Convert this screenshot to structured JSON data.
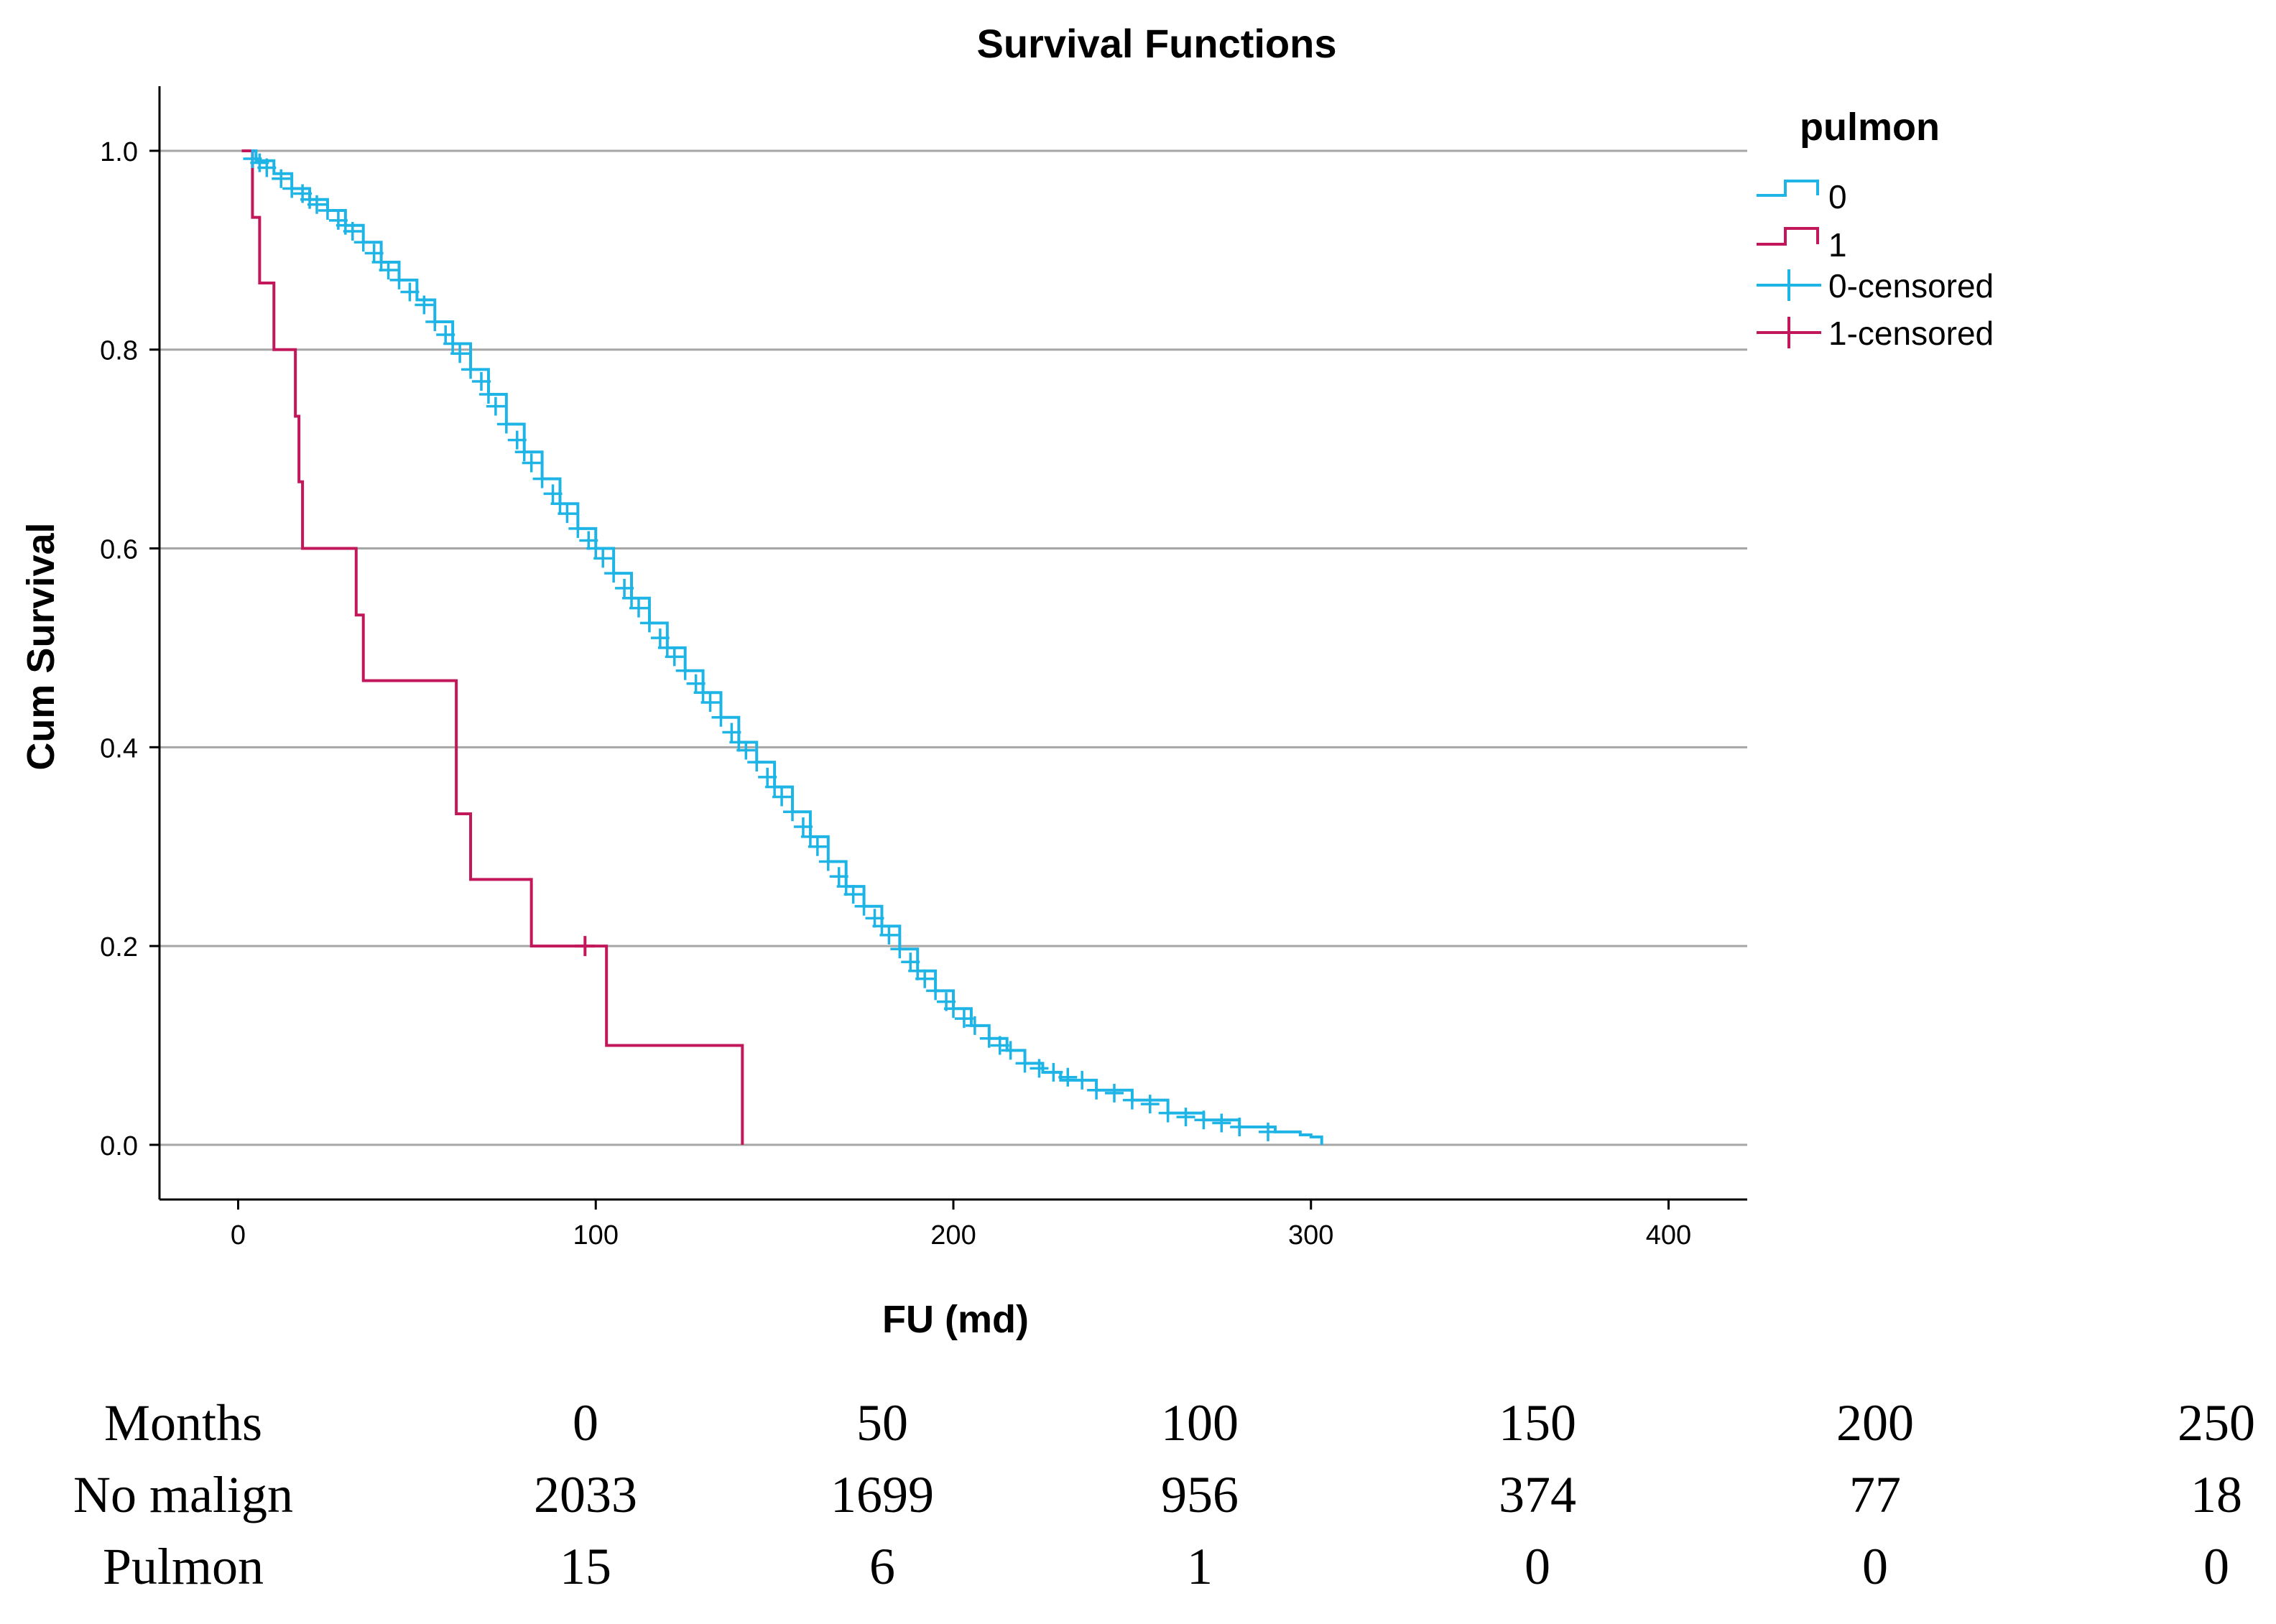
{
  "chart_data": {
    "type": "line",
    "subtype": "kaplan-meier step",
    "title": "Survival Functions",
    "xlabel": "FU (md)",
    "ylabel": "Cum Survival",
    "xlim": [
      -22,
      422
    ],
    "ylim": [
      -0.055,
      1.065
    ],
    "xticks": [
      0,
      100,
      200,
      300,
      400
    ],
    "yticks": [
      0.0,
      0.2,
      0.4,
      0.6,
      0.8,
      1.0
    ],
    "ytick_labels": [
      "0.0",
      "0.2",
      "0.4",
      "0.6",
      "0.8",
      "1.0"
    ],
    "grid": "horizontal",
    "legend": {
      "title": "pulmon",
      "position": "top-right",
      "entries": [
        "0",
        "1",
        "0-censored",
        "1-censored"
      ]
    },
    "series": [
      {
        "name": "0",
        "color": "#1EB4E6",
        "x": [
          2,
          5,
          10,
          15,
          20,
          25,
          30,
          35,
          40,
          45,
          50,
          55,
          60,
          65,
          70,
          75,
          80,
          85,
          90,
          95,
          100,
          105,
          110,
          115,
          120,
          125,
          130,
          135,
          140,
          145,
          150,
          155,
          160,
          165,
          170,
          175,
          180,
          185,
          190,
          195,
          200,
          205,
          210,
          215,
          220,
          225,
          230,
          240,
          250,
          260,
          270,
          280,
          290,
          297,
          300,
          303
        ],
        "y": [
          1.0,
          0.99,
          0.977,
          0.962,
          0.951,
          0.94,
          0.925,
          0.908,
          0.888,
          0.87,
          0.85,
          0.828,
          0.806,
          0.78,
          0.755,
          0.725,
          0.697,
          0.67,
          0.645,
          0.62,
          0.6,
          0.575,
          0.55,
          0.525,
          0.5,
          0.477,
          0.455,
          0.43,
          0.405,
          0.385,
          0.36,
          0.335,
          0.31,
          0.285,
          0.26,
          0.24,
          0.22,
          0.197,
          0.175,
          0.155,
          0.137,
          0.12,
          0.107,
          0.095,
          0.082,
          0.073,
          0.065,
          0.055,
          0.045,
          0.032,
          0.025,
          0.018,
          0.013,
          0.01,
          0.008,
          0.0
        ]
      },
      {
        "name": "1",
        "color": "#C2185B",
        "x": [
          1,
          4,
          6,
          10,
          16,
          17,
          18,
          33,
          35,
          37,
          61,
          65,
          82,
          97,
          103,
          141
        ],
        "y": [
          1.0,
          0.933,
          0.867,
          0.8,
          0.733,
          0.667,
          0.6,
          0.533,
          0.467,
          0.467,
          0.333,
          0.267,
          0.2,
          0.2,
          0.1,
          0.0
        ],
        "censored_x": [
          97
        ],
        "censored_y": [
          0.2
        ]
      }
    ],
    "censored_series0": {
      "x": [
        4,
        6,
        8,
        12,
        15,
        18,
        20,
        22,
        25,
        28,
        30,
        32,
        35,
        38,
        40,
        42,
        45,
        48,
        52,
        55,
        58,
        60,
        62,
        65,
        68,
        70,
        72,
        75,
        78,
        80,
        82,
        85,
        88,
        90,
        92,
        95,
        98,
        100,
        102,
        105,
        108,
        110,
        112,
        115,
        118,
        120,
        122,
        125,
        128,
        130,
        132,
        135,
        138,
        140,
        142,
        145,
        148,
        150,
        152,
        155,
        158,
        160,
        162,
        165,
        168,
        170,
        172,
        175,
        178,
        180,
        182,
        185,
        188,
        190,
        192,
        195,
        198,
        200,
        203,
        206,
        210,
        213,
        216,
        220,
        224,
        228,
        232,
        236,
        240,
        245,
        250,
        255,
        260,
        265,
        270,
        275,
        280,
        288
      ],
      "y": [
        0.992,
        0.988,
        0.983,
        0.972,
        0.962,
        0.957,
        0.951,
        0.946,
        0.94,
        0.93,
        0.925,
        0.919,
        0.908,
        0.897,
        0.888,
        0.88,
        0.87,
        0.858,
        0.845,
        0.828,
        0.815,
        0.806,
        0.796,
        0.78,
        0.768,
        0.755,
        0.743,
        0.725,
        0.709,
        0.697,
        0.686,
        0.67,
        0.655,
        0.645,
        0.635,
        0.62,
        0.608,
        0.6,
        0.59,
        0.575,
        0.56,
        0.55,
        0.54,
        0.525,
        0.51,
        0.5,
        0.491,
        0.477,
        0.464,
        0.455,
        0.445,
        0.43,
        0.415,
        0.405,
        0.397,
        0.385,
        0.37,
        0.36,
        0.35,
        0.335,
        0.32,
        0.31,
        0.3,
        0.285,
        0.27,
        0.26,
        0.252,
        0.24,
        0.228,
        0.22,
        0.211,
        0.197,
        0.184,
        0.175,
        0.167,
        0.155,
        0.144,
        0.137,
        0.127,
        0.12,
        0.107,
        0.1,
        0.095,
        0.082,
        0.077,
        0.073,
        0.068,
        0.065,
        0.055,
        0.052,
        0.045,
        0.041,
        0.032,
        0.028,
        0.025,
        0.022,
        0.018,
        0.013
      ]
    }
  },
  "risk_table": {
    "header_label": "Months",
    "columns": [
      "0",
      "50",
      "100",
      "150",
      "200",
      "250"
    ],
    "rows": [
      {
        "label": "No malign",
        "values": [
          "2033",
          "1699",
          "956",
          "374",
          "77",
          "18"
        ]
      },
      {
        "label": "Pulmon",
        "values": [
          "15",
          "6",
          "1",
          "0",
          "0",
          "0"
        ]
      }
    ]
  }
}
